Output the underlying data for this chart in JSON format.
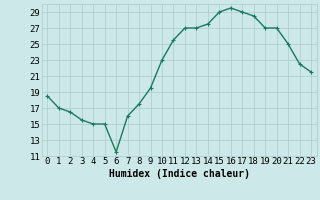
{
  "x": [
    0,
    1,
    2,
    3,
    4,
    5,
    6,
    7,
    8,
    9,
    10,
    11,
    12,
    13,
    14,
    15,
    16,
    17,
    18,
    19,
    20,
    21,
    22,
    23
  ],
  "y": [
    18.5,
    17.0,
    16.5,
    15.5,
    15.0,
    15.0,
    11.5,
    16.0,
    17.5,
    19.5,
    23.0,
    25.5,
    27.0,
    27.0,
    27.5,
    29.0,
    29.5,
    29.0,
    28.5,
    27.0,
    27.0,
    25.0,
    22.5,
    21.5
  ],
  "line_color": "#1a7a5e",
  "marker_color": "#1a7a5e",
  "bg_color": "#cce8e8",
  "grid_color": "#aacccc",
  "xlabel": "Humidex (Indice chaleur)",
  "ylim": [
    11,
    30
  ],
  "yticks": [
    11,
    13,
    15,
    17,
    19,
    21,
    23,
    25,
    27,
    29
  ],
  "xticks": [
    0,
    1,
    2,
    3,
    4,
    5,
    6,
    7,
    8,
    9,
    10,
    11,
    12,
    13,
    14,
    15,
    16,
    17,
    18,
    19,
    20,
    21,
    22,
    23
  ],
  "xlabel_fontsize": 7,
  "tick_fontsize": 6.5,
  "line_width": 1.0,
  "marker_size": 2.5
}
